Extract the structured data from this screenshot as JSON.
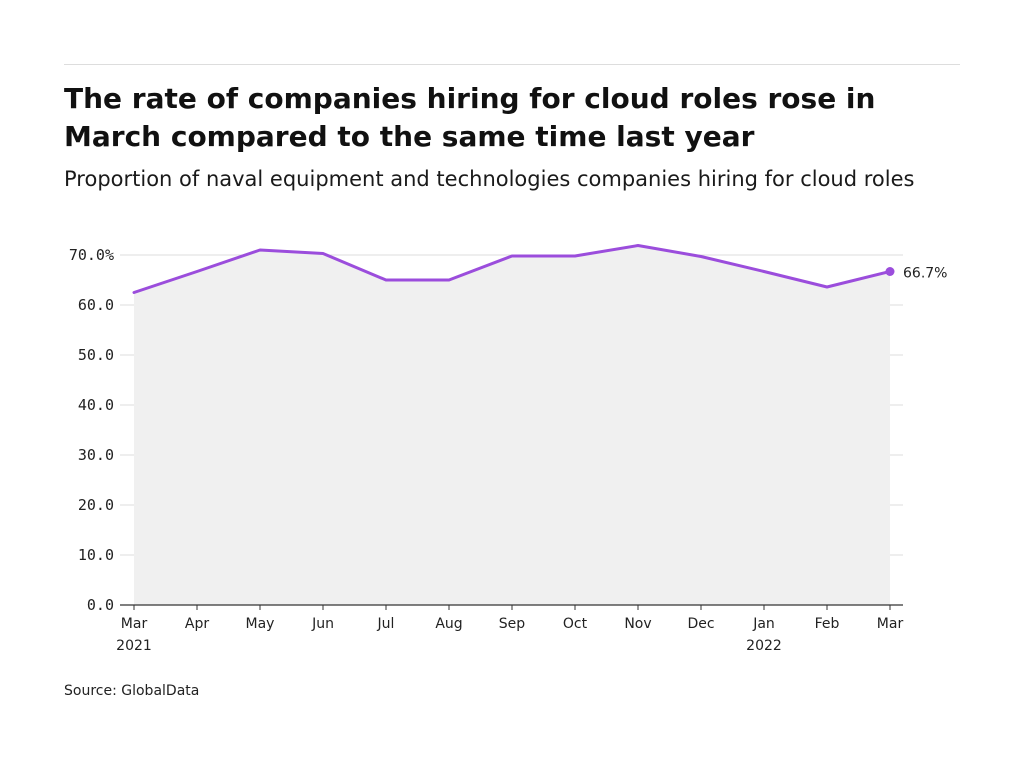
{
  "header": {
    "title": "The rate of companies hiring for cloud roles rose in March compared to the same time last year",
    "subtitle": "Proportion of naval equipment and technologies companies hiring for cloud roles"
  },
  "footer": {
    "source": "Source: GlobalData"
  },
  "colors": {
    "line": "#9b4ddc",
    "area": "#f0f0f0",
    "grid": "#dddddd",
    "axis": "#333333"
  },
  "chart_data": {
    "type": "area",
    "title": "The rate of companies hiring for cloud roles rose in March compared to the same time last year",
    "subtitle": "Proportion of naval equipment and technologies companies hiring for cloud roles",
    "xlabel": "",
    "ylabel": "",
    "categories": [
      "Mar 2021",
      "Apr",
      "May",
      "Jun",
      "Jul",
      "Aug",
      "Sep",
      "Oct",
      "Nov",
      "Dec",
      "Jan 2022",
      "Feb",
      "Mar"
    ],
    "x_tick_labels": [
      [
        "Mar",
        "2021"
      ],
      [
        "Apr"
      ],
      [
        "May"
      ],
      [
        "Jun"
      ],
      [
        "Jul"
      ],
      [
        "Aug"
      ],
      [
        "Sep"
      ],
      [
        "Oct"
      ],
      [
        "Nov"
      ],
      [
        "Dec"
      ],
      [
        "Jan",
        "2022"
      ],
      [
        "Feb"
      ],
      [
        "Mar"
      ]
    ],
    "values": [
      62.5,
      66.7,
      71.0,
      70.3,
      65.0,
      65.0,
      69.8,
      69.8,
      71.9,
      69.7,
      66.7,
      63.6,
      66.7
    ],
    "y_ticks": [
      "0.0",
      "10.0",
      "20.0",
      "30.0",
      "40.0",
      "50.0",
      "60.0",
      "70.0%"
    ],
    "y_tick_values": [
      0,
      10,
      20,
      30,
      40,
      50,
      60,
      70
    ],
    "ylim": [
      0,
      70
    ],
    "grid": true,
    "legend": "none",
    "end_label": "66.7%"
  }
}
